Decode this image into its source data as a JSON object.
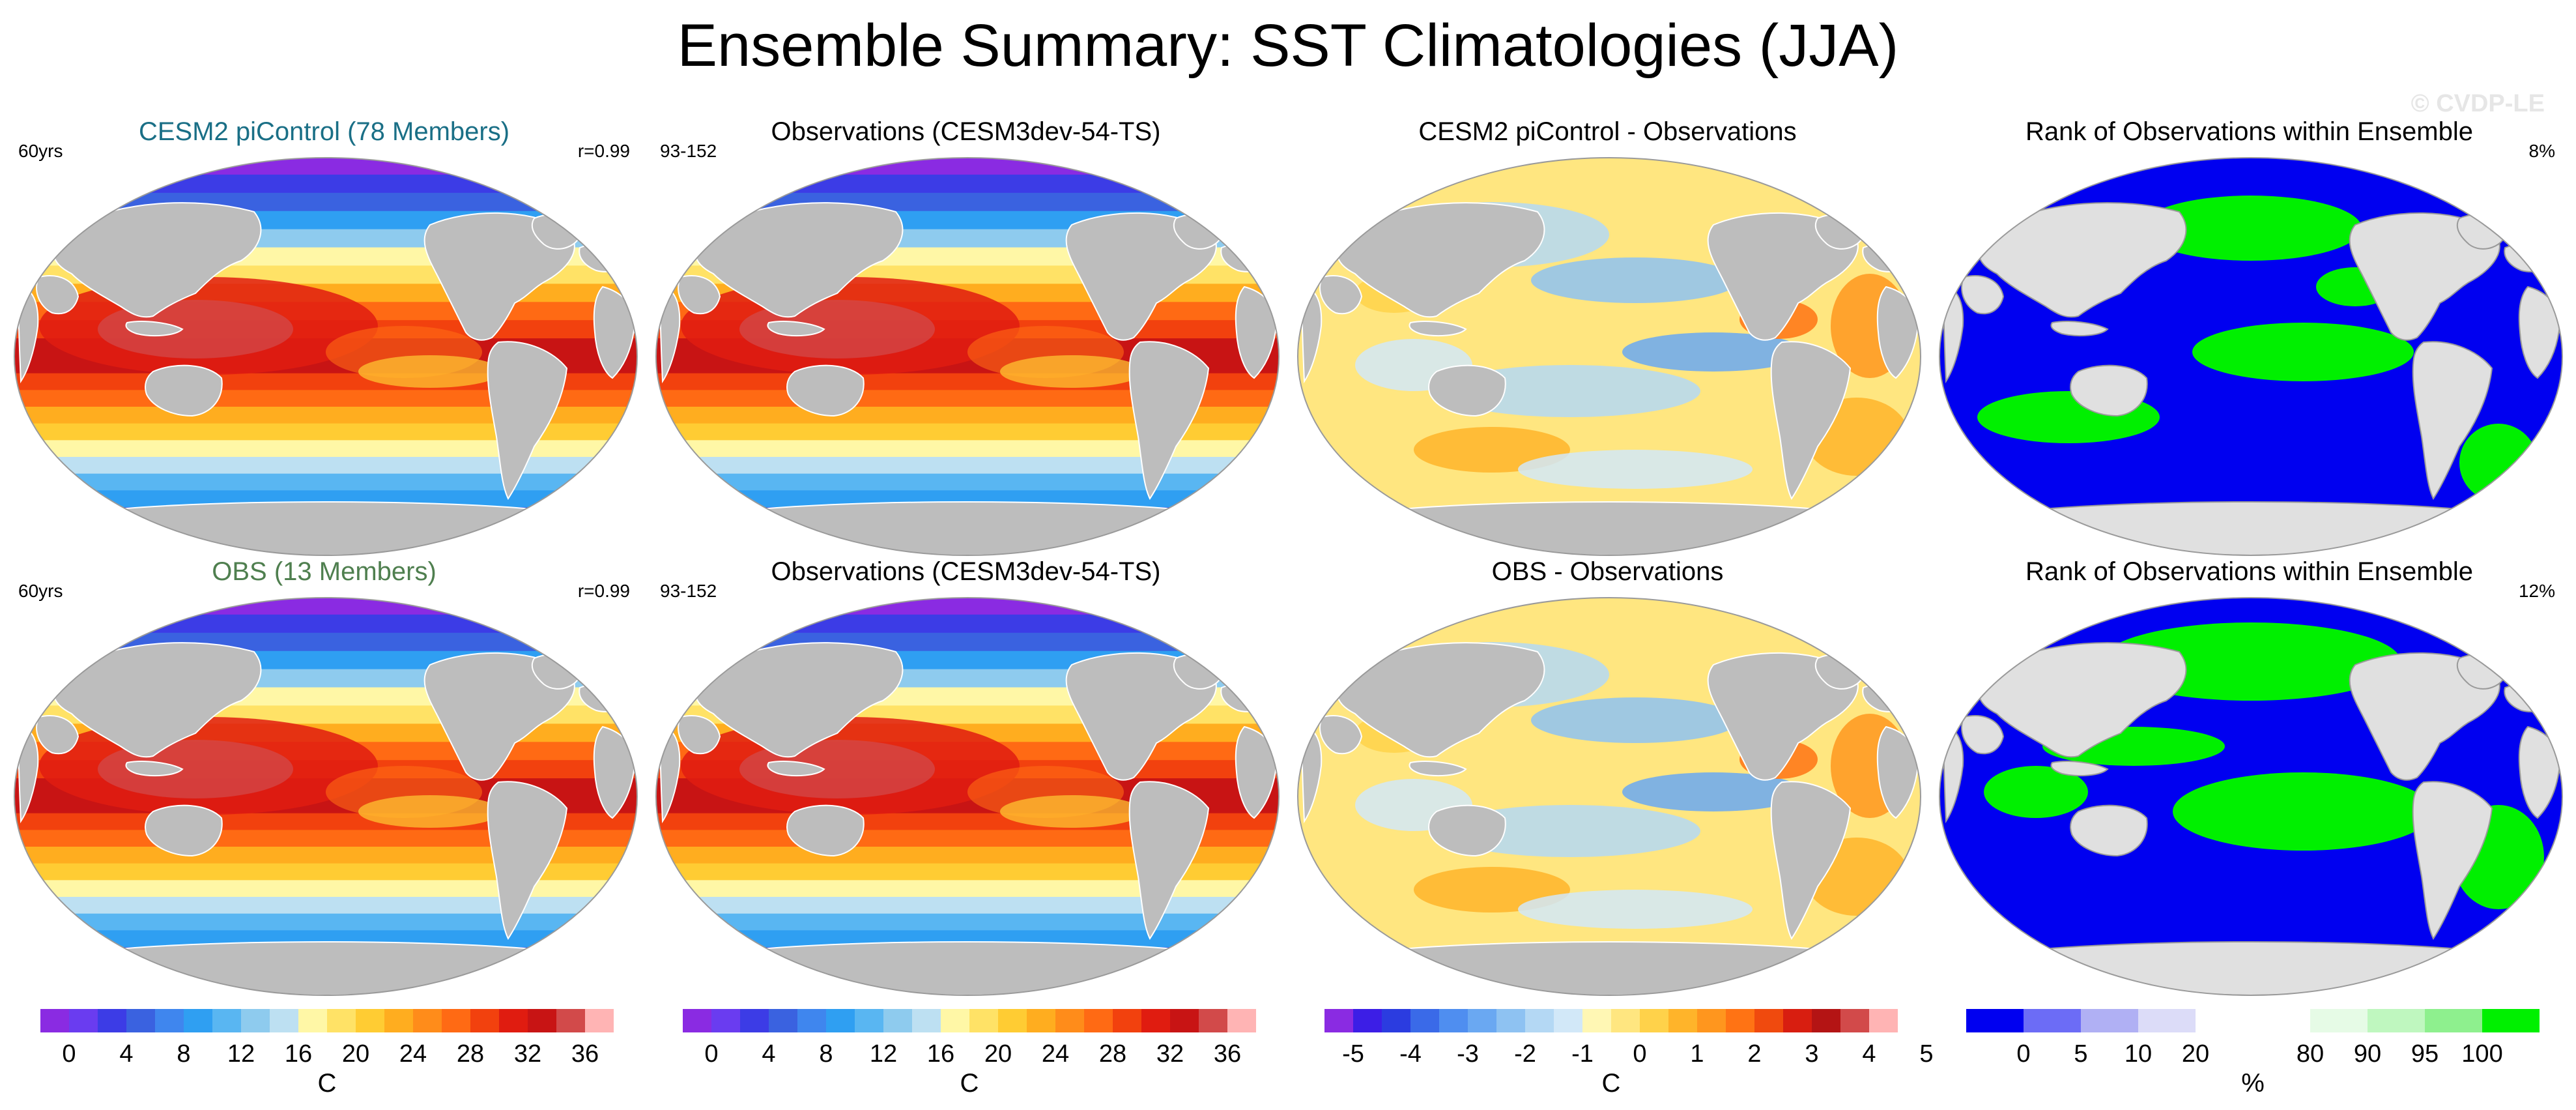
{
  "title": "Ensemble Summary: SST Climatologies (JJA)",
  "watermark": "© CVDP-LE",
  "panels": [
    {
      "title": "CESM2 piControl (78 Members)",
      "left": "60yrs",
      "right": "r=0.99",
      "kind": "sst"
    },
    {
      "title": "Observations (CESM3dev-54-TS)",
      "left": "93-152",
      "right": "",
      "kind": "sst"
    },
    {
      "title": "CESM2 piControl - Observations",
      "left": "",
      "right": "",
      "kind": "diff"
    },
    {
      "title": "Rank of Observations within Ensemble",
      "left": "",
      "right": "8%",
      "kind": "rank"
    },
    {
      "title": "OBS (13 Members)",
      "left": "60yrs",
      "right": "r=0.99",
      "kind": "sst"
    },
    {
      "title": "Observations (CESM3dev-54-TS)",
      "left": "93-152",
      "right": "",
      "kind": "sst"
    },
    {
      "title": "OBS - Observations",
      "left": "",
      "right": "",
      "kind": "diff"
    },
    {
      "title": "Rank of Observations within Ensemble",
      "left": "",
      "right": "12%",
      "kind": "rank"
    }
  ],
  "colorbars": [
    {
      "unit": "C",
      "colors": [
        "#8a2be2",
        "#6a3cf0",
        "#3c3ce6",
        "#3a62e0",
        "#3f86ee",
        "#2f9ff2",
        "#59b6f2",
        "#8ecbee",
        "#bde0f2",
        "#fff7a6",
        "#ffe266",
        "#ffcc33",
        "#ffad1f",
        "#ff8c1a",
        "#ff6a14",
        "#f2410e",
        "#e01c10",
        "#c81414",
        "#d24a4a",
        "#ffb4b4"
      ],
      "ticks": [
        "0",
        "4",
        "8",
        "12",
        "16",
        "20",
        "24",
        "28",
        "32",
        "36"
      ]
    },
    {
      "unit": "C",
      "colors": [
        "#8a2be2",
        "#6a3cf0",
        "#3c3ce6",
        "#3a62e0",
        "#3f86ee",
        "#2f9ff2",
        "#59b6f2",
        "#8ecbee",
        "#bde0f2",
        "#fff7a6",
        "#ffe266",
        "#ffcc33",
        "#ffad1f",
        "#ff8c1a",
        "#ff6a14",
        "#f2410e",
        "#e01c10",
        "#c81414",
        "#d24a4a",
        "#ffb4b4"
      ],
      "ticks": [
        "0",
        "4",
        "8",
        "12",
        "16",
        "20",
        "24",
        "28",
        "32",
        "36"
      ]
    },
    {
      "unit": "C",
      "colors": [
        "#8a2be2",
        "#3c1ee6",
        "#2b3ce0",
        "#3a6ae8",
        "#4f8ef0",
        "#6aa8f2",
        "#8ec2f2",
        "#b4d8f4",
        "#d2e8f8",
        "#fff7b4",
        "#ffe680",
        "#ffd24a",
        "#ffb42a",
        "#ff961e",
        "#ff7314",
        "#f04a0e",
        "#d81e10",
        "#b41414",
        "#d24a4a",
        "#ffb4b4"
      ],
      "ticks": [
        "-5",
        "-4",
        "-3",
        "-2",
        "-1",
        "0",
        "1",
        "2",
        "3",
        "4",
        "5"
      ]
    },
    {
      "unit": "%",
      "colors": [
        "#0000f0",
        "#6c6cf6",
        "#b0b0f4",
        "#dcdcf8",
        "#ffffff",
        "#ffffff",
        "#e6fbe6",
        "#bff7bf",
        "#8ef08e",
        "#00f000"
      ],
      "ticks": [
        "0",
        "5",
        "10",
        "20",
        "80",
        "90",
        "95",
        "100"
      ]
    }
  ]
}
